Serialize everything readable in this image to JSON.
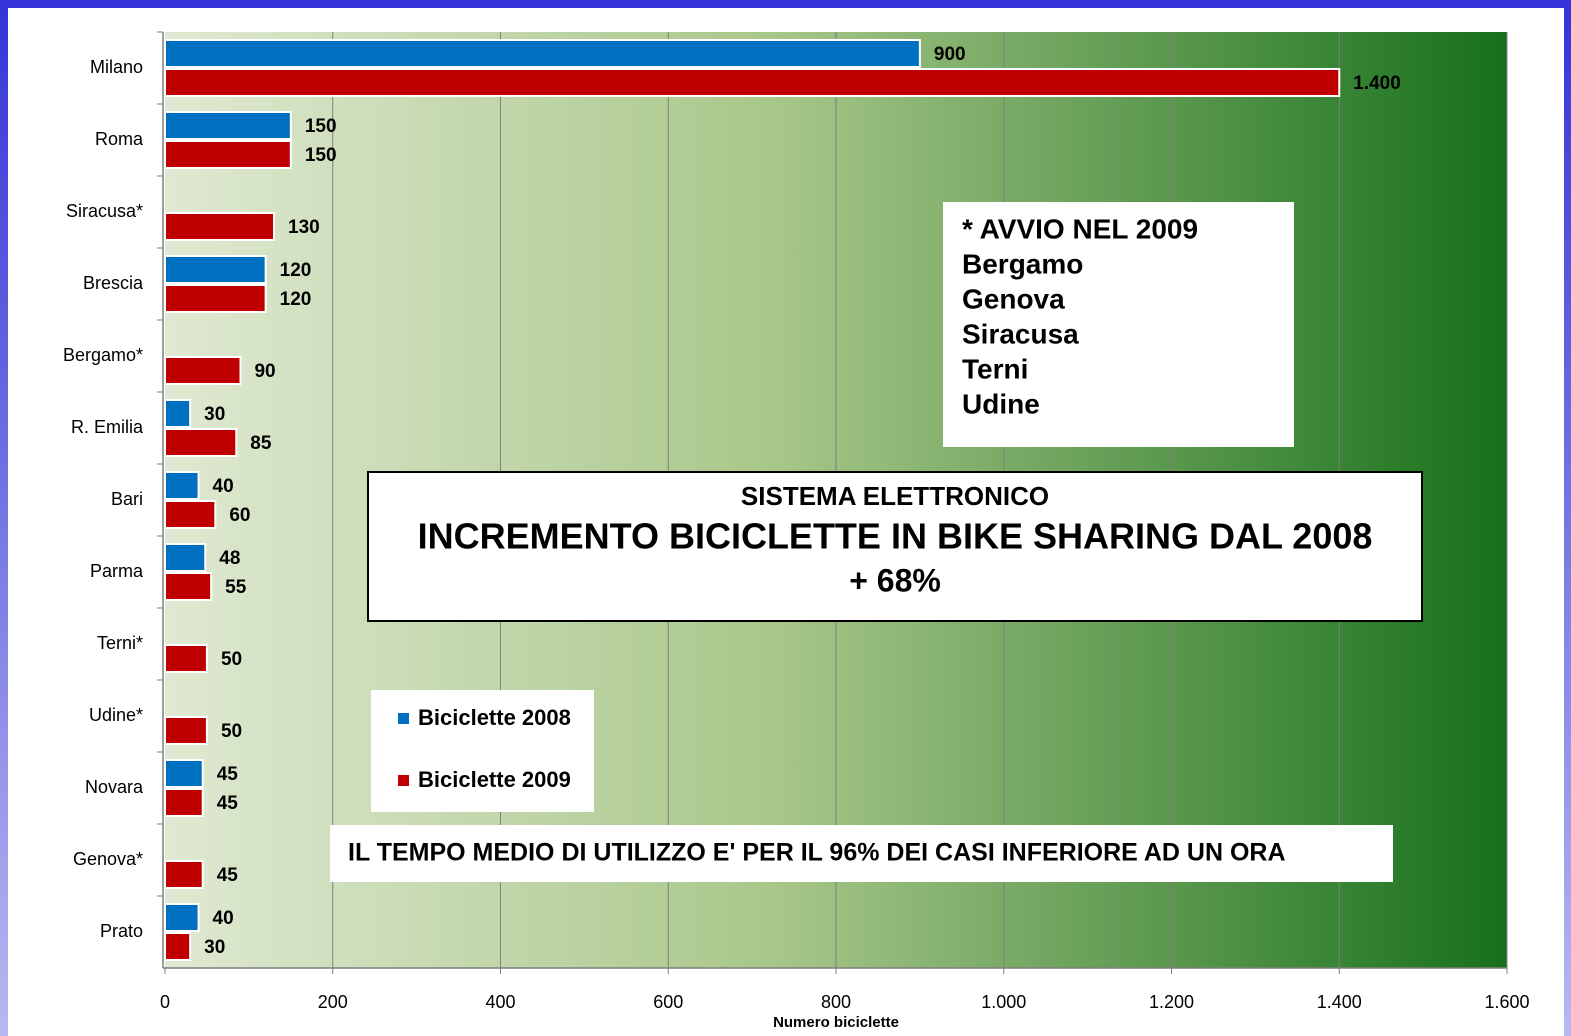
{
  "chart_data": {
    "type": "hbar",
    "categories": [
      "Milano",
      "Roma",
      "Siracusa*",
      "Brescia",
      "Bergamo*",
      "R. Emilia",
      "Bari",
      "Parma",
      "Terni*",
      "Udine*",
      "Novara",
      "Genova*",
      "Prato"
    ],
    "series": [
      {
        "name": "Biciclette 2008",
        "color": "#0070c0",
        "values": [
          900,
          150,
          null,
          120,
          null,
          30,
          40,
          48,
          null,
          null,
          45,
          null,
          40
        ]
      },
      {
        "name": "Biciclette 2009",
        "color": "#c00000",
        "values": [
          1400,
          150,
          130,
          120,
          90,
          85,
          60,
          55,
          50,
          50,
          45,
          45,
          30
        ],
        "value_labels": [
          "1.400",
          "150",
          "130",
          "120",
          "90",
          "85",
          "60",
          "55",
          "50",
          "50",
          "45",
          "45",
          "30"
        ]
      }
    ],
    "xlabel": "Numero biciclette",
    "xlim": [
      0,
      1600
    ],
    "xticks": [
      0,
      200,
      400,
      600,
      800,
      {
        "value": 1000,
        "label": "1.000"
      },
      {
        "value": 1200,
        "label": "1.200"
      },
      {
        "value": 1400,
        "label": "1.400"
      },
      {
        "value": 1600,
        "label": "1.600"
      }
    ],
    "grid": true,
    "notes": [
      "* AVVIO NEL 2009",
      "Bergamo",
      "Genova",
      "Siracusa",
      "Terni",
      "Udine"
    ],
    "headline": [
      "SISTEMA ELETTRONICO",
      "INCREMENTO BICICLETTE IN BIKE SHARING DAL 2008",
      "+ 68%"
    ],
    "footnote": "IL TEMPO MEDIO DI UTILIZZO E' PER IL 96% DEI CASI INFERIORE AD UN ORA"
  }
}
